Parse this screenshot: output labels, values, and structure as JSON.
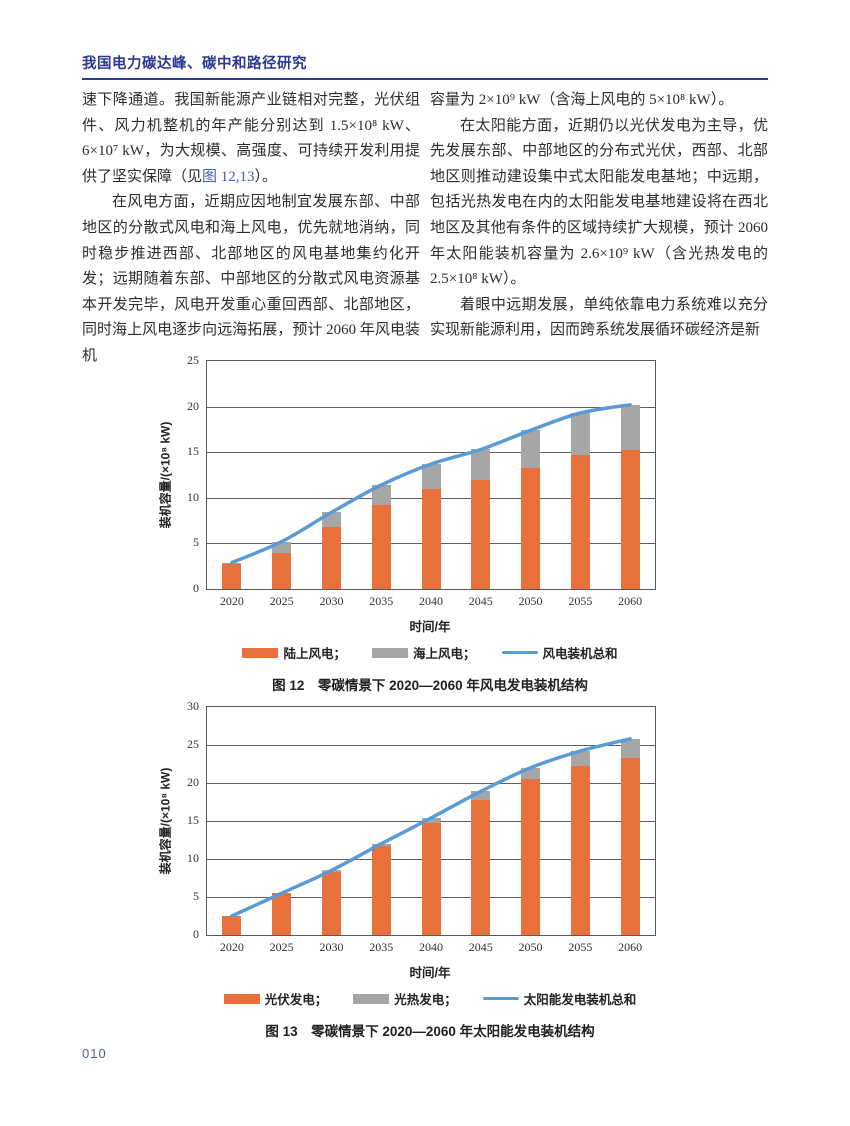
{
  "header": {
    "title": "我国电力碳达峰、碳中和路径研究"
  },
  "footer": {
    "page_number": "010"
  },
  "colors": {
    "accent_navy": "#2B3990",
    "link_blue": "#3C63AD",
    "bar_orange": "#E8703B",
    "bar_gray": "#A6A6A6",
    "line_blue": "#5B9BD5"
  },
  "columns": {
    "left": [
      {
        "indent": false,
        "segments": [
          {
            "t": "速下降通道。我国新能源产业链相对完整，光伏组件、风力机整机的年产能分别达到 1.5×10⁸ kW、6×10⁷ kW，为大规模、高强度、可持续开发利用提供了坚实保障（见",
            "link": false
          },
          {
            "t": "图 12,13",
            "link": true
          },
          {
            "t": "）。",
            "link": false
          }
        ]
      },
      {
        "indent": true,
        "segments": [
          {
            "t": "在风电方面，近期应因地制宜发展东部、中部地区的分散式风电和海上风电，优先就地消纳，同时稳步推进西部、北部地区的风电基地集约化开发；远期随着东部、中部地区的分散式风电资源基本开发完毕，风电开发重心重回西部、北部地区，同时海上风电逐步向远海拓展，预计 2060 年风电装机",
            "link": false
          }
        ]
      }
    ],
    "right": [
      {
        "indent": false,
        "segments": [
          {
            "t": "容量为 2×10⁹ kW（含海上风电的 5×10⁸ kW）。",
            "link": false
          }
        ]
      },
      {
        "indent": true,
        "segments": [
          {
            "t": "在太阳能方面，近期仍以光伏发电为主导，优先发展东部、中部地区的分布式光伏，西部、北部地区则推动建设集中式太阳能发电基地；中远期，包括光热发电在内的太阳能发电基地建设将在西北地区及其他有条件的区域持续扩大规模，预计 2060 年太阳能装机容量为 2.6×10⁹ kW（含光热发电的 2.5×10⁸ kW）。",
            "link": false
          }
        ]
      },
      {
        "indent": true,
        "segments": [
          {
            "t": "着眼中远期发展，单纯依靠电力系统难以充分实现新能源利用，因而跨系统发展循环碳经济是新",
            "link": false
          }
        ]
      }
    ]
  },
  "chart_data": [
    {
      "type": "bar",
      "subtype": "stacked-bar-with-line",
      "categories": [
        "2020",
        "2025",
        "2030",
        "2035",
        "2040",
        "2045",
        "2050",
        "2055",
        "2060"
      ],
      "series": [
        {
          "name": "陆上风电",
          "slug": "onshore-wind",
          "role": "bar",
          "color": "#E8703B",
          "values": [
            2.8,
            4.0,
            6.8,
            9.2,
            11.0,
            12.0,
            13.3,
            14.7,
            15.2
          ]
        },
        {
          "name": "海上风电",
          "slug": "offshore-wind",
          "role": "bar",
          "color": "#A6A6A6",
          "values": [
            0.1,
            1.2,
            1.6,
            2.2,
            2.7,
            3.3,
            4.1,
            4.6,
            5.0
          ]
        },
        {
          "name": "风电装机总和",
          "slug": "wind-total",
          "role": "line",
          "color": "#5B9BD5",
          "values": [
            2.9,
            5.2,
            8.4,
            11.4,
            13.7,
            15.3,
            17.4,
            19.3,
            20.2
          ]
        }
      ],
      "ylabel": "装机容量/(×10⁸ kW)",
      "xlabel": "时间/年",
      "ylim": [
        0,
        25
      ],
      "yticks": [
        0,
        5,
        10,
        15,
        20,
        25
      ],
      "grid": true,
      "legend_position": "bottom",
      "legend": [
        {
          "label": "陆上风电；",
          "series": 0
        },
        {
          "label": "海上风电；",
          "series": 1
        },
        {
          "label": "风电装机总和",
          "series": 2
        }
      ],
      "caption": "图 12　零碳情景下 2020—2060 年风电发电装机结构"
    },
    {
      "type": "bar",
      "subtype": "stacked-bar-with-line",
      "categories": [
        "2020",
        "2025",
        "2030",
        "2035",
        "2040",
        "2045",
        "2050",
        "2055",
        "2060"
      ],
      "series": [
        {
          "name": "光伏发电",
          "slug": "pv-power",
          "role": "bar",
          "color": "#E8703B",
          "values": [
            2.5,
            5.5,
            8.3,
            11.7,
            14.8,
            17.8,
            20.5,
            22.2,
            23.3
          ]
        },
        {
          "name": "光热发电",
          "slug": "csp-power",
          "role": "bar",
          "color": "#A6A6A6",
          "values": [
            0.0,
            0.0,
            0.2,
            0.3,
            0.6,
            1.1,
            1.5,
            2.0,
            2.5
          ]
        },
        {
          "name": "太阳能发电装机总和",
          "slug": "solar-total",
          "role": "line",
          "color": "#5B9BD5",
          "values": [
            2.5,
            5.5,
            8.5,
            12.0,
            15.4,
            18.9,
            22.0,
            24.2,
            25.8
          ]
        }
      ],
      "ylabel": "装机容量/(×10⁸ kW)",
      "xlabel": "时间/年",
      "ylim": [
        0,
        30
      ],
      "yticks": [
        0,
        5,
        10,
        15,
        20,
        25,
        30
      ],
      "grid": true,
      "legend_position": "bottom",
      "legend": [
        {
          "label": "光伏发电；",
          "series": 0
        },
        {
          "label": "光热发电；",
          "series": 1
        },
        {
          "label": "太阳能发电装机总和",
          "series": 2
        }
      ],
      "caption": "图 13　零碳情景下 2020—2060 年太阳能发电装机结构"
    }
  ]
}
